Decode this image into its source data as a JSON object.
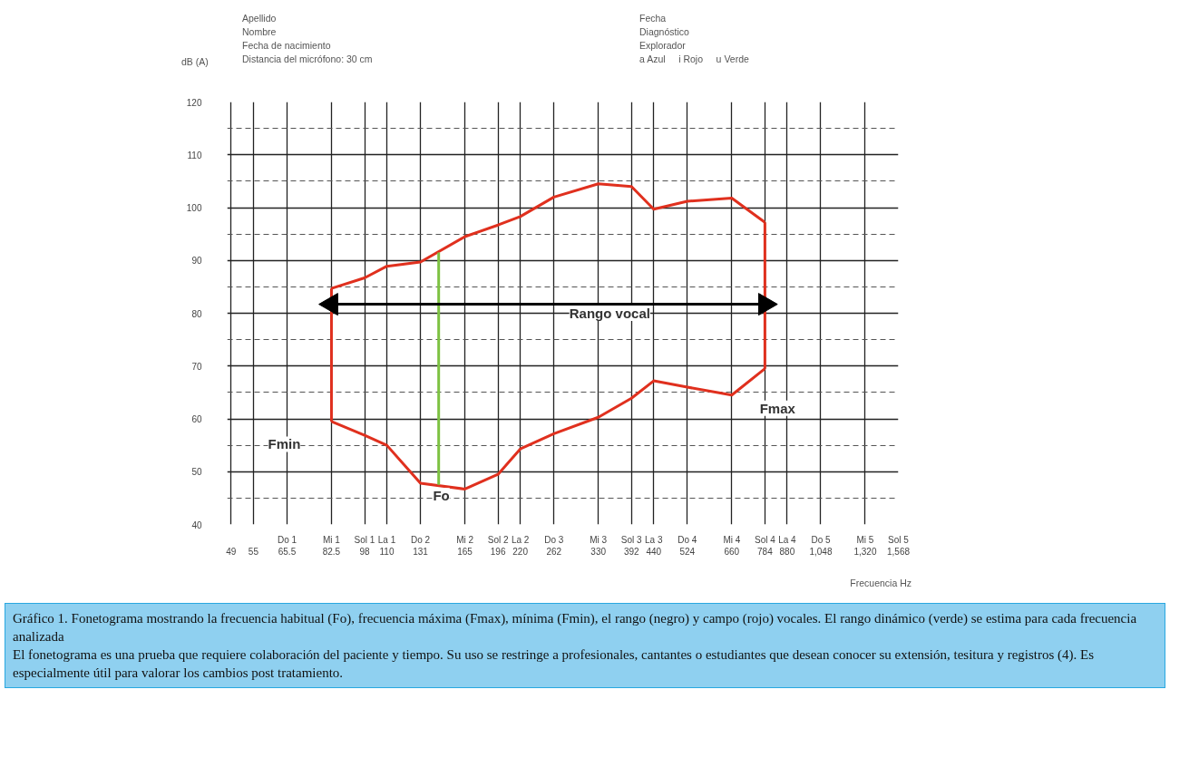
{
  "chart_data": {
    "type": "line",
    "title": "Apellido\nNombre\nFecha de nacimiento\nDistancia del micrófono: 30 cm",
    "subtitle": "Fecha\nDiagnóstico\nExplorador\na Azul     i Rojo     u Verde",
    "xlabel": "Frecuencia Hz",
    "ylabel": "dB (A)",
    "log": "x",
    "grid": true,
    "xlim": [
      48,
      1568
    ],
    "ylim": [
      40,
      120
    ],
    "yticks": [
      40,
      50,
      60,
      70,
      80,
      90,
      100,
      110,
      120
    ],
    "xticks": [
      {
        "value": 49,
        "label": "\n49"
      },
      {
        "value": 55,
        "label": "\n55"
      },
      {
        "value": 65.5,
        "label": "Do 1\n65.5"
      },
      {
        "value": 82.5,
        "label": "Mi 1\n82.5"
      },
      {
        "value": 98,
        "label": "Sol 1\n98"
      },
      {
        "value": 110,
        "label": "La 1\n110"
      },
      {
        "value": 131,
        "label": "Do 2\n131"
      },
      {
        "value": 165,
        "label": "Mi 2\n165"
      },
      {
        "value": 196,
        "label": "Sol 2\n196"
      },
      {
        "value": 220,
        "label": "La 2\n220"
      },
      {
        "value": 262,
        "label": "Do 3\n262"
      },
      {
        "value": 330,
        "label": "Mi 3\n330"
      },
      {
        "value": 392,
        "label": "Sol 3\n392"
      },
      {
        "value": 440,
        "label": "La 3\n440"
      },
      {
        "value": 524,
        "label": "Do 4\n524"
      },
      {
        "value": 660,
        "label": "Mi 4\n660"
      },
      {
        "value": 784,
        "label": "Sol 4\n784"
      },
      {
        "value": 880,
        "label": "La 4\n880"
      },
      {
        "value": 1048,
        "label": "Do 5\n1,048"
      },
      {
        "value": 1320,
        "label": "Mi 5\n1,320"
      },
      {
        "value": 1568,
        "label": "Sol 5\n1,568"
      }
    ],
    "series": [
      {
        "color": "#e0301e",
        "x": [
          82.5,
          98,
          110,
          131,
          165,
          196,
          220,
          262,
          330,
          392,
          440,
          524,
          660,
          784
        ],
        "values": [
          84.7,
          86.7,
          88.9,
          89.7,
          94.5,
          96.7,
          98.3,
          102,
          104.5,
          104,
          99.7,
          101.2,
          101.8,
          97.2
        ]
      },
      {
        "color": "#e0301e",
        "x": [
          82.5,
          98,
          110,
          131,
          165,
          196,
          220,
          262,
          330,
          392,
          440,
          524,
          660,
          784
        ],
        "values": [
          59.5,
          56.9,
          55,
          47.8,
          46.7,
          49.5,
          54.3,
          57.2,
          60.3,
          63.9,
          67.2,
          66,
          64.5,
          69.5
        ]
      },
      {
        "color": "#e0301e",
        "x": [
          82.5,
          82.5
        ],
        "values": [
          59.5,
          84.7
        ]
      },
      {
        "color": "#e0301e",
        "x": [
          784,
          784
        ],
        "values": [
          69.5,
          97.2
        ]
      },
      {
        "color": "#7dc242",
        "x": [
          144,
          144
        ],
        "values": [
          47.5,
          91.5
        ]
      },
      {
        "color": "#000000",
        "marker": "triangle",
        "x": [
          82.5,
          784
        ],
        "values": [
          81.7,
          81.7
        ]
      }
    ],
    "annotations": [
      "Fmin",
      {
        "text": "Fo",
        "x": 146,
        "y": 47.5
      },
      "Fmax",
      "Rango vocal",
      "Gráfico 1. Fonetograma mostrando la frecuencia habitual (Fo), frecuencia máxima (Fmax), mínima (Fmin), el rango (negro) y campo (rojo) vocales. El rango dinámico (verde) se estima para cada frecuencia analizada",
      "El fonetograma es una prueba que requiere colaboración del paciente y tiempo. Su uso se restringe a profesionales, cantantes o estudiantes que desean conocer su extensión, tesitura y registros (4). Es especialmente útil para valorar los cambios post tratamiento."
    ]
  }
}
